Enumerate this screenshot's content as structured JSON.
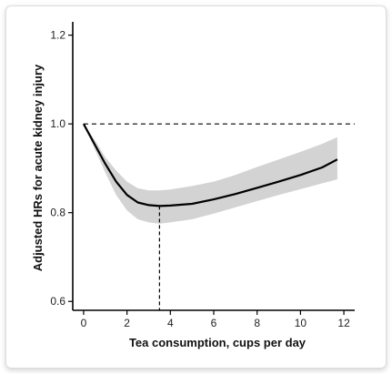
{
  "chart_data": {
    "type": "line",
    "title": "",
    "xlabel": "Tea consumption, cups per day",
    "ylabel": "Adjusted HRs for acute kidney injury",
    "xlim": [
      -0.5,
      12.5
    ],
    "ylim": [
      0.58,
      1.23
    ],
    "x_ticks": [
      0,
      2,
      4,
      6,
      8,
      10,
      12
    ],
    "y_ticks": [
      0.6,
      0.8,
      1.0,
      1.2
    ],
    "x_tick_labels": [
      "0",
      "2",
      "4",
      "6",
      "8",
      "10",
      "12"
    ],
    "y_tick_labels": [
      "0.6",
      "0.8",
      "1.0",
      "1.2"
    ],
    "reference_line": {
      "y": 1.0,
      "style": "dashed"
    },
    "nadir_marker": {
      "x": 3.5,
      "y": 0.815,
      "style": "dashed"
    },
    "grid": false,
    "legend": "none",
    "colors": {
      "line": "#000000",
      "band": "#d3d3d3"
    },
    "series": [
      {
        "x": [
          0,
          0.5,
          1,
          1.5,
          2,
          2.5,
          3,
          3.5,
          4,
          5,
          6,
          7,
          8,
          9,
          10,
          11,
          11.7
        ],
        "y": [
          1.0,
          0.955,
          0.91,
          0.87,
          0.84,
          0.823,
          0.817,
          0.815,
          0.816,
          0.82,
          0.83,
          0.842,
          0.856,
          0.87,
          0.885,
          0.902,
          0.92
        ],
        "lower": [
          1.0,
          0.945,
          0.89,
          0.84,
          0.805,
          0.785,
          0.778,
          0.775,
          0.778,
          0.785,
          0.798,
          0.812,
          0.826,
          0.84,
          0.853,
          0.866,
          0.875
        ],
        "upper": [
          1.0,
          0.965,
          0.925,
          0.895,
          0.87,
          0.855,
          0.85,
          0.85,
          0.852,
          0.86,
          0.87,
          0.885,
          0.903,
          0.92,
          0.937,
          0.955,
          0.97
        ]
      }
    ]
  }
}
